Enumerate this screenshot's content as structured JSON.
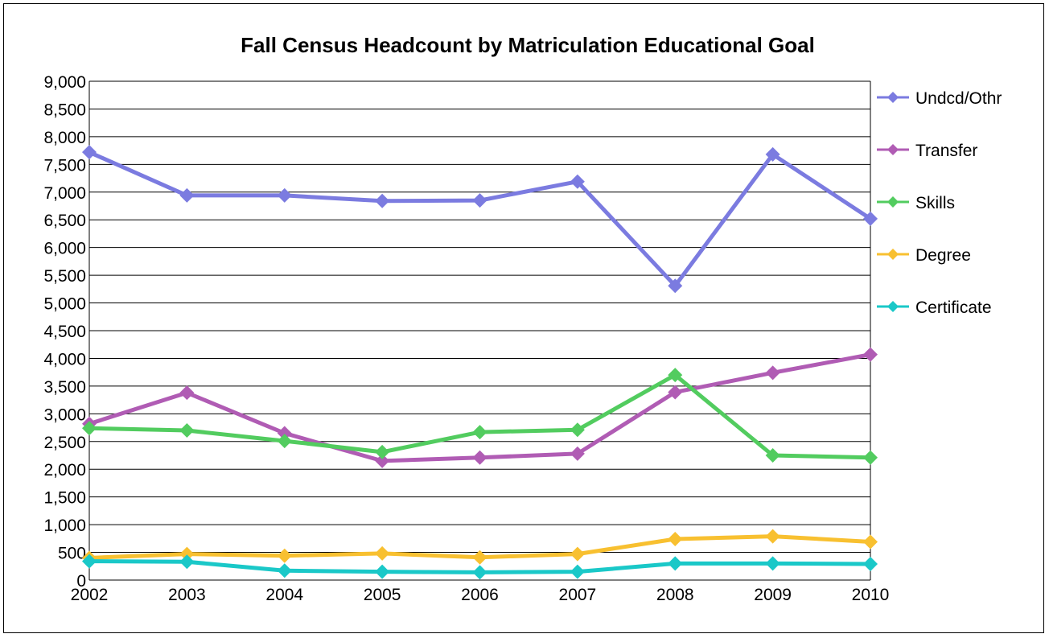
{
  "chart_data": {
    "type": "line",
    "title": "Fall Census Headcount by Matriculation Educational Goal",
    "xlabel": "",
    "ylabel": "",
    "x": [
      "2002",
      "2003",
      "2004",
      "2005",
      "2006",
      "2007",
      "2008",
      "2009",
      "2010"
    ],
    "ylim": [
      0,
      9000
    ],
    "y_ticks": [
      0,
      500,
      1000,
      1500,
      2000,
      2500,
      3000,
      3500,
      4000,
      4500,
      5000,
      5500,
      6000,
      6500,
      7000,
      7500,
      8000,
      8500,
      9000
    ],
    "y_tick_labels": [
      "0",
      "500",
      "1,000",
      "1,500",
      "2,000",
      "2,500",
      "3,000",
      "3,500",
      "4,000",
      "4,500",
      "5,000",
      "5,500",
      "6,000",
      "6,500",
      "7,000",
      "7,500",
      "8,000",
      "8,500",
      "9,000"
    ],
    "grid": true,
    "legend_position": "right",
    "series": [
      {
        "name": "Undcd/Othr",
        "color": "#7b7be0",
        "values": [
          7720,
          6940,
          6940,
          6840,
          6850,
          7190,
          5310,
          7680,
          6520
        ]
      },
      {
        "name": "Transfer",
        "color": "#b05cb4",
        "values": [
          2820,
          3380,
          2650,
          2150,
          2210,
          2280,
          3390,
          3740,
          4070
        ]
      },
      {
        "name": "Skills",
        "color": "#52cc5f",
        "values": [
          2740,
          2700,
          2510,
          2310,
          2670,
          2710,
          3700,
          2250,
          2210
        ]
      },
      {
        "name": "Degree",
        "color": "#f8c030",
        "values": [
          400,
          470,
          440,
          480,
          410,
          470,
          740,
          790,
          690
        ]
      },
      {
        "name": "Certificate",
        "color": "#1ac8c8",
        "values": [
          340,
          330,
          170,
          150,
          140,
          150,
          300,
          300,
          290
        ]
      }
    ]
  }
}
